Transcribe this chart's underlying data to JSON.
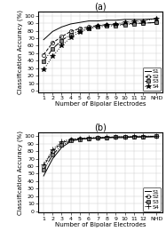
{
  "title_a": "(a)",
  "title_b": "(b)",
  "xlabel": "Number of Bipolar Electrodes",
  "ylabel": "Classification Accuracy (%)",
  "xtick_labels": [
    "1",
    "2",
    "3",
    "4",
    "5",
    "6",
    "7",
    "8",
    "9",
    "10",
    "11",
    "12",
    "NHD"
  ],
  "yticks": [
    0,
    10,
    20,
    30,
    40,
    50,
    60,
    70,
    80,
    90,
    100
  ],
  "ylim": [
    -2,
    105
  ],
  "legend_labels": [
    "S1",
    "S2",
    "S3",
    "S4"
  ],
  "plot_a": {
    "S1": [
      68,
      79,
      85,
      89,
      91,
      93,
      93,
      94,
      94,
      95,
      95,
      95,
      96
    ],
    "S2": [
      48,
      64,
      72,
      79,
      83,
      85,
      87,
      88,
      88,
      89,
      90,
      90,
      91
    ],
    "S3": [
      39,
      56,
      67,
      75,
      80,
      83,
      85,
      86,
      87,
      88,
      89,
      90,
      91
    ],
    "S4": [
      28,
      46,
      60,
      71,
      78,
      83,
      86,
      88,
      89,
      91,
      92,
      93,
      96
    ]
  },
  "plot_b": {
    "S1": [
      47,
      70,
      85,
      93,
      96,
      97,
      97,
      98,
      98,
      98,
      99,
      99,
      99
    ],
    "S2": [
      60,
      80,
      91,
      95,
      97,
      97,
      98,
      98,
      99,
      99,
      99,
      99,
      100
    ],
    "S3": [
      55,
      75,
      88,
      94,
      96,
      97,
      98,
      98,
      99,
      99,
      99,
      99,
      100
    ],
    "S4": [
      62,
      82,
      93,
      96,
      97,
      98,
      98,
      99,
      99,
      99,
      100,
      100,
      100
    ]
  },
  "markers_a": [
    "None",
    "o",
    "s",
    "*"
  ],
  "markers_b": [
    "None",
    "o",
    "s",
    "+"
  ],
  "linestyles": [
    "-",
    "--",
    "-.",
    ":"
  ],
  "colors": [
    "black",
    "black",
    "black",
    "black"
  ],
  "markersize_a": [
    0,
    3,
    3,
    4
  ],
  "markersize_b": [
    0,
    3,
    3,
    5
  ],
  "markerfacecolor": [
    "black",
    "none",
    "gray",
    "black"
  ]
}
